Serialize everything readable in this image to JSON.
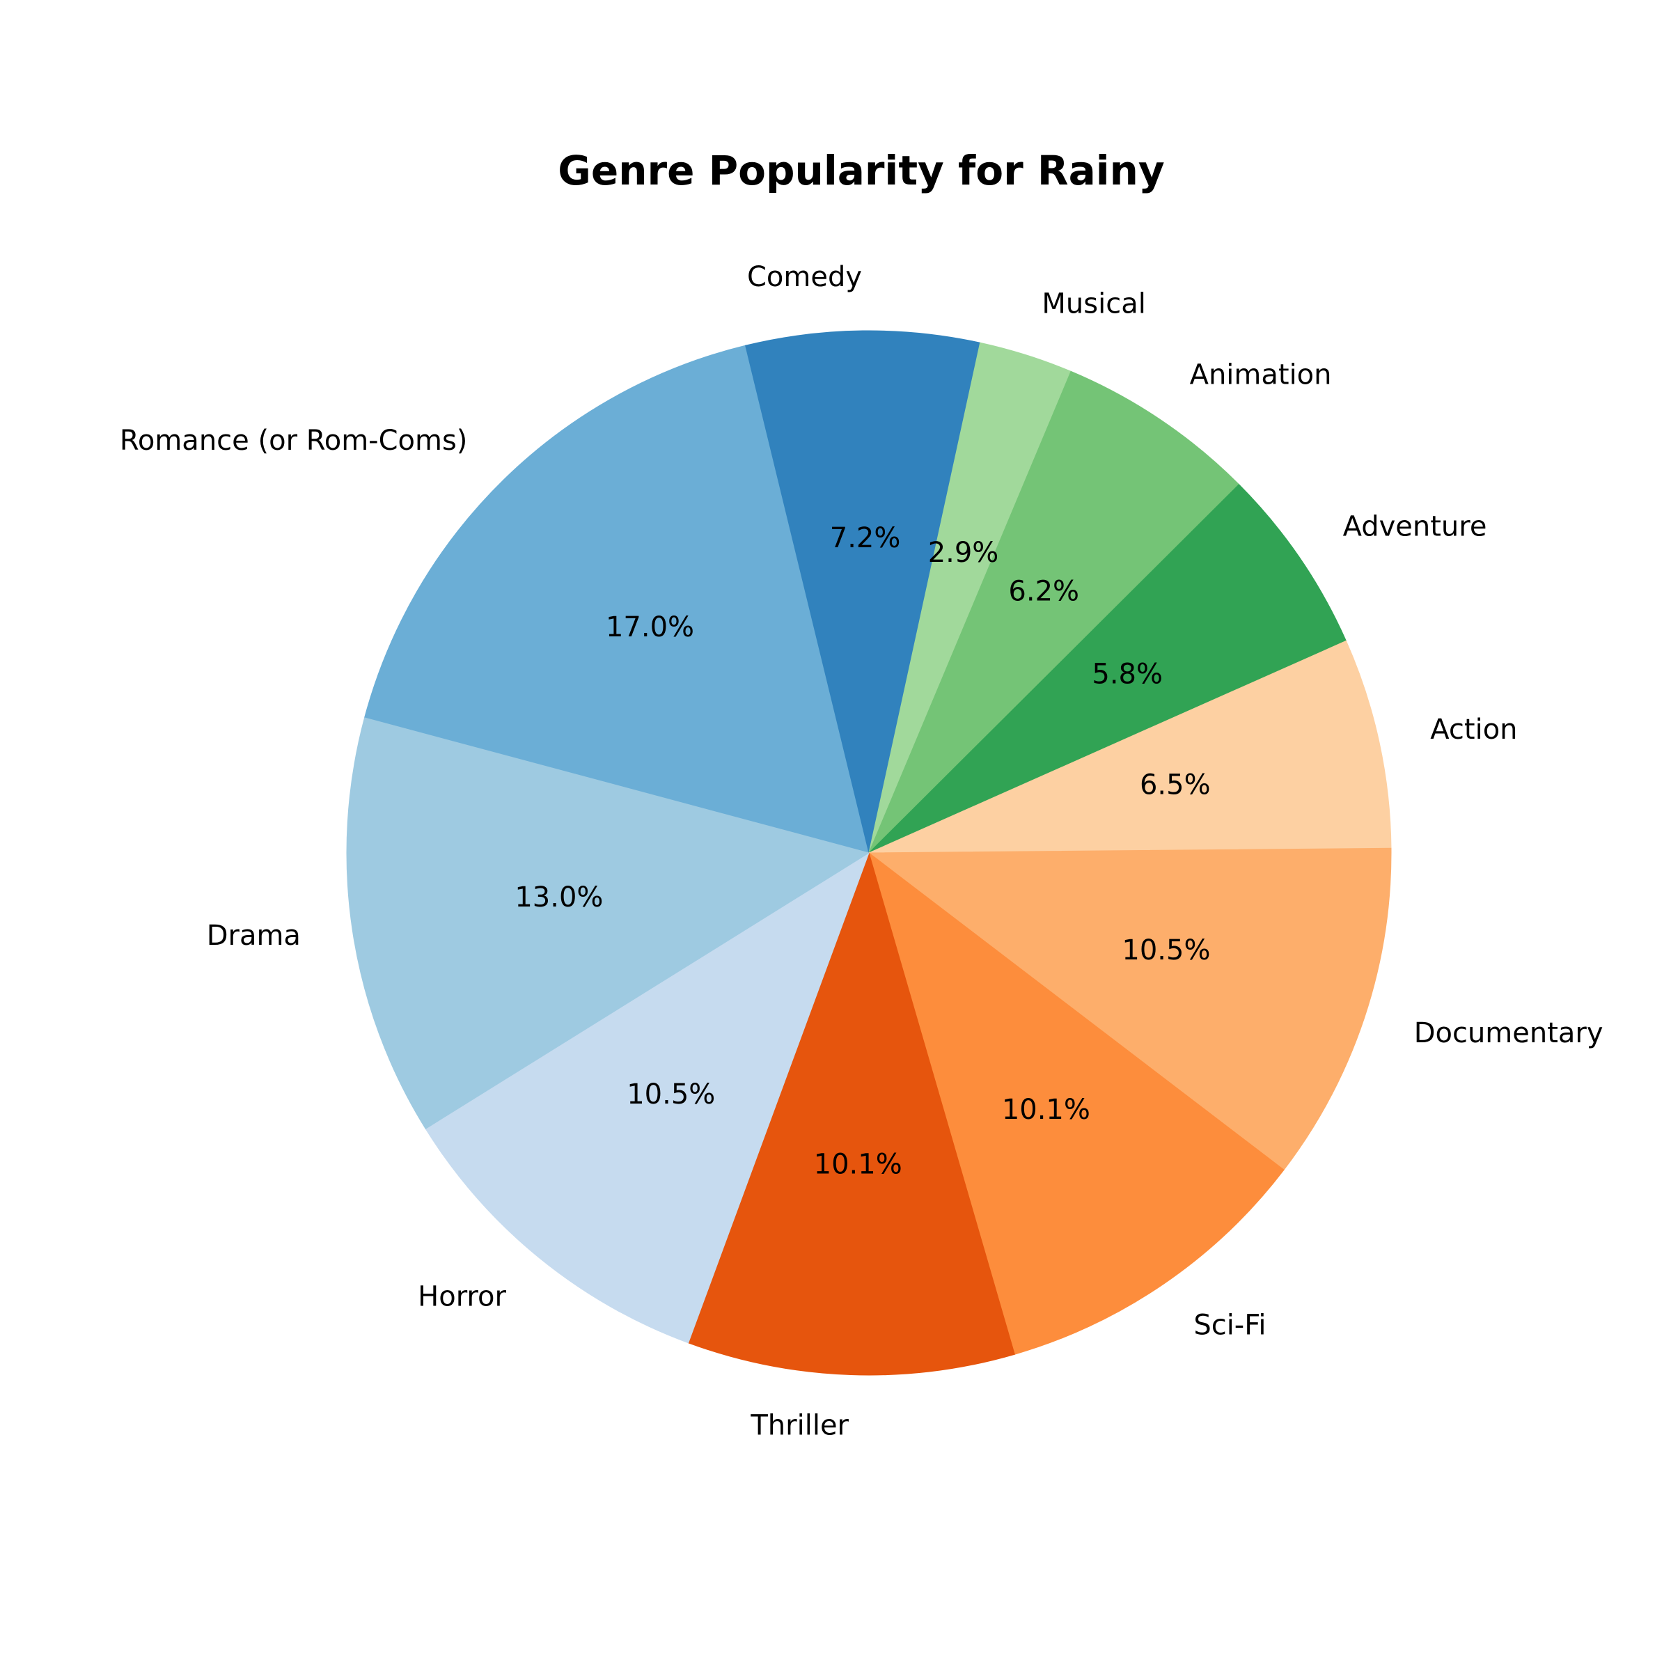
{
  "chart_data": {
    "type": "pie",
    "title": "Genre Popularity for Rainy",
    "start_angle_deg": 165,
    "direction": "clockwise",
    "slices": [
      {
        "label": "Romance (or Rom-Coms)",
        "value": 17.0,
        "pct_label": "17.0%",
        "color": "#6baed6"
      },
      {
        "label": "Comedy",
        "value": 7.2,
        "pct_label": "7.2%",
        "color": "#3182bd"
      },
      {
        "label": "Musical",
        "value": 2.9,
        "pct_label": "2.9%",
        "color": "#a1d99b"
      },
      {
        "label": "Animation",
        "value": 6.2,
        "pct_label": "6.2%",
        "color": "#74c476"
      },
      {
        "label": "Adventure",
        "value": 5.8,
        "pct_label": "5.8%",
        "color": "#31a354"
      },
      {
        "label": "Action",
        "value": 6.5,
        "pct_label": "6.5%",
        "color": "#fdd0a2"
      },
      {
        "label": "Documentary",
        "value": 10.5,
        "pct_label": "10.5%",
        "color": "#fdae6b"
      },
      {
        "label": "Sci-Fi",
        "value": 10.1,
        "pct_label": "10.1%",
        "color": "#fd8d3c"
      },
      {
        "label": "Thriller",
        "value": 10.1,
        "pct_label": "10.1%",
        "color": "#e6550d"
      },
      {
        "label": "Horror",
        "value": 10.5,
        "pct_label": "10.5%",
        "color": "#c6dbef"
      },
      {
        "label": "Drama",
        "value": 13.0,
        "pct_label": "13.0%",
        "color": "#9ecae1"
      }
    ]
  }
}
